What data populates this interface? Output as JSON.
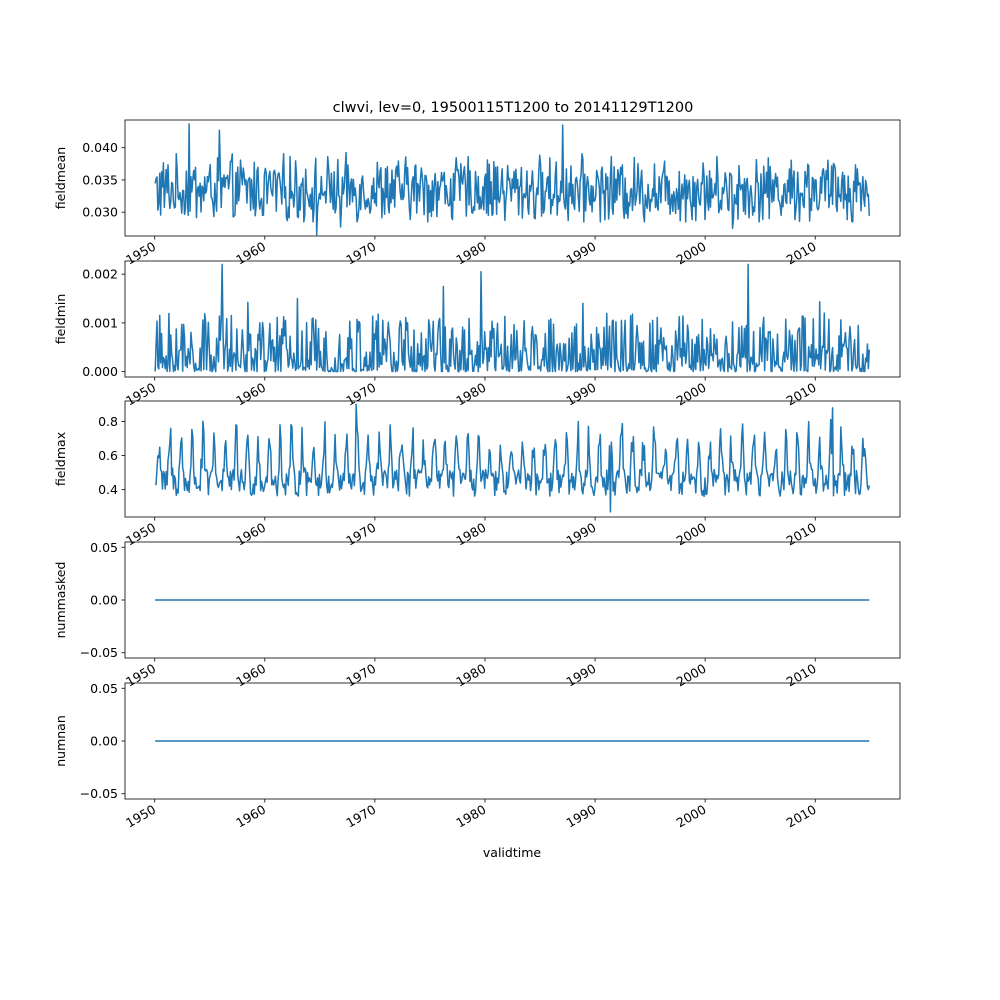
{
  "title": "clwvi, lev=0, 19500115T1200 to 20141129T1200",
  "xlabel": "validtime",
  "colors": {
    "line": "#1f77b4",
    "axes": "#000000",
    "background": "#ffffff"
  },
  "chart_data": [
    {
      "type": "line",
      "name": "fieldmean",
      "ylabel": "fieldmean",
      "x_start": "1950-01-15",
      "x_end": "2014-11-29",
      "x_step": "monthly",
      "xlim": [
        1947.3,
        2017.7
      ],
      "ylim": [
        0.0263,
        0.0443
      ],
      "x_ticks": [
        "1950",
        "1960",
        "1970",
        "1980",
        "1990",
        "2000",
        "2010"
      ],
      "y_ticks": [
        {
          "value": 0.03,
          "label": "0.030"
        },
        {
          "value": 0.035,
          "label": "0.035"
        },
        {
          "value": 0.04,
          "label": "0.040"
        }
      ],
      "stats": {
        "min": 0.0265,
        "max": 0.0437,
        "mean": 0.0335
      },
      "spikes": [
        {
          "year": 1953.1,
          "value": 0.0437
        },
        {
          "year": 1955.9,
          "value": 0.0427
        },
        {
          "year": 1964.7,
          "value": 0.0265
        },
        {
          "year": 1966.9,
          "value": 0.0277
        },
        {
          "year": 1987.1,
          "value": 0.0435
        },
        {
          "year": 2002.5,
          "value": 0.0275
        }
      ]
    },
    {
      "type": "line",
      "name": "fieldmin",
      "ylabel": "fieldmin",
      "x_start": "1950-01-15",
      "x_end": "2014-11-29",
      "x_step": "monthly",
      "xlim": [
        1947.3,
        2017.7
      ],
      "ylim": [
        -0.00011,
        0.00227
      ],
      "x_ticks": [
        "1950",
        "1960",
        "1970",
        "1980",
        "1990",
        "2000",
        "2010"
      ],
      "y_ticks": [
        {
          "value": 0.0,
          "label": "0.000"
        },
        {
          "value": 0.001,
          "label": "0.001"
        },
        {
          "value": 0.002,
          "label": "0.002"
        }
      ],
      "stats": {
        "min": 0.0,
        "max": 0.0022,
        "mean": 0.00035
      },
      "spikes": [
        {
          "year": 1956.1,
          "value": 0.0022
        },
        {
          "year": 1963.0,
          "value": 0.0015
        },
        {
          "year": 1976.2,
          "value": 0.00175
        },
        {
          "year": 1979.6,
          "value": 0.00205
        },
        {
          "year": 1988.9,
          "value": 0.0014
        },
        {
          "year": 2003.9,
          "value": 0.0022
        },
        {
          "year": 2010.8,
          "value": 0.0012
        }
      ]
    },
    {
      "type": "line",
      "name": "fieldmax",
      "ylabel": "fieldmax",
      "x_start": "1950-01-15",
      "x_end": "2014-11-29",
      "x_step": "monthly",
      "xlim": [
        1947.3,
        2017.7
      ],
      "ylim": [
        0.24,
        0.92
      ],
      "x_ticks": [
        "1950",
        "1960",
        "1970",
        "1980",
        "1990",
        "2000",
        "2010"
      ],
      "y_ticks": [
        {
          "value": 0.4,
          "label": "0.4"
        },
        {
          "value": 0.6,
          "label": "0.6"
        },
        {
          "value": 0.8,
          "label": "0.8"
        }
      ],
      "stats": {
        "min": 0.27,
        "max": 0.9,
        "mean": 0.47
      },
      "spikes": [
        {
          "year": 1968.3,
          "value": 0.9
        },
        {
          "year": 2011.6,
          "value": 0.88
        },
        {
          "year": 1991.4,
          "value": 0.27
        }
      ]
    },
    {
      "type": "line",
      "name": "nummasked",
      "ylabel": "nummasked",
      "x_start": "1950-01-15",
      "x_end": "2014-11-29",
      "xlim": [
        1947.3,
        2017.7
      ],
      "ylim": [
        -0.055,
        0.055
      ],
      "x_ticks": [
        "1950",
        "1960",
        "1970",
        "1980",
        "1990",
        "2000",
        "2010"
      ],
      "y_ticks": [
        {
          "value": -0.05,
          "label": "−0.05"
        },
        {
          "value": 0.0,
          "label": "0.00"
        },
        {
          "value": 0.05,
          "label": "0.05"
        }
      ],
      "constant_value": 0.0
    },
    {
      "type": "line",
      "name": "numnan",
      "ylabel": "numnan",
      "x_start": "1950-01-15",
      "x_end": "2014-11-29",
      "xlim": [
        1947.3,
        2017.7
      ],
      "ylim": [
        -0.055,
        0.055
      ],
      "x_ticks": [
        "1950",
        "1960",
        "1970",
        "1980",
        "1990",
        "2000",
        "2010"
      ],
      "y_ticks": [
        {
          "value": -0.05,
          "label": "−0.05"
        },
        {
          "value": 0.0,
          "label": "0.00"
        },
        {
          "value": 0.05,
          "label": "0.05"
        }
      ],
      "constant_value": 0.0
    }
  ]
}
